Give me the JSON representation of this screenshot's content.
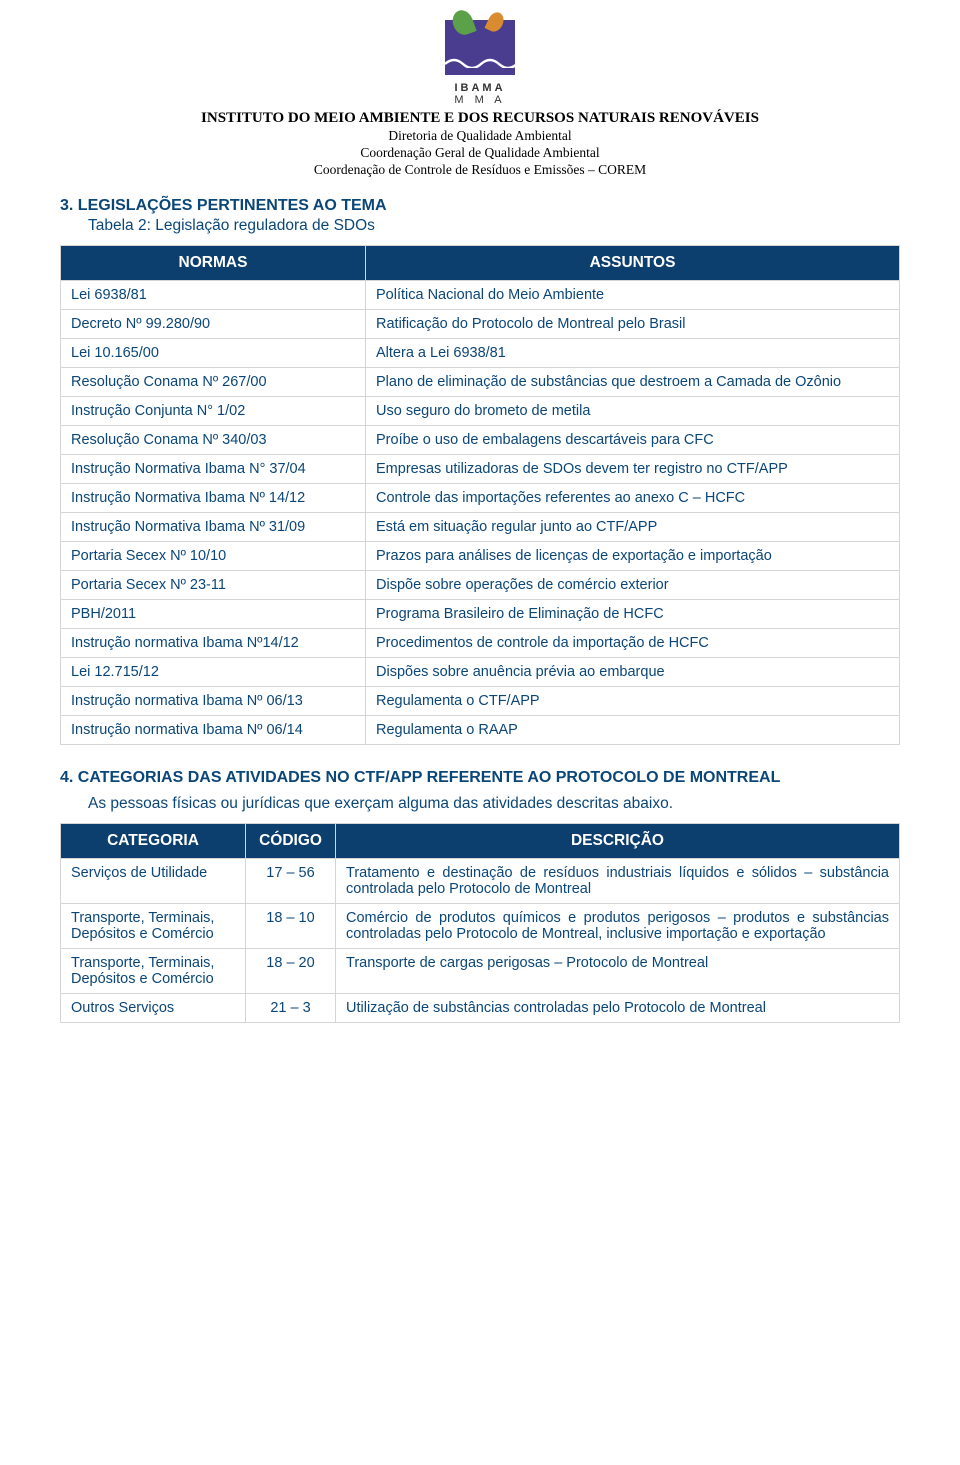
{
  "colors": {
    "accent": "#0b4678",
    "header_bg": "#0c3f6e",
    "header_text": "#ffffff",
    "border": "#d5d5d5",
    "body_text": "#0b4678",
    "page_bg": "#ffffff",
    "logo_bg": "#4a3d8f",
    "logo_leaf": "#5da04a",
    "logo_accent": "#d98b2f"
  },
  "typography": {
    "heading_fontsize": 16,
    "body_fontsize": 15.5,
    "cell_fontsize": 14.5,
    "header_serif_fontsize": 15,
    "header_serif_sub_fontsize": 13.5
  },
  "logo": {
    "name": "IBAMA",
    "sub": "M M A"
  },
  "header": {
    "line1": "INSTITUTO DO MEIO AMBIENTE E DOS RECURSOS NATURAIS RENOVÁVEIS",
    "line2": "Diretoria de Qualidade Ambiental",
    "line3": "Coordenação Geral de Qualidade Ambiental",
    "line4": "Coordenação de Controle de Resíduos e Emissões – COREM"
  },
  "section3": {
    "number": "3.",
    "title": "LEGISLAÇÕES PERTINENTES AO TEMA",
    "subtitle": "Tabela 2: Legislação reguladora de SDOs"
  },
  "table1": {
    "col1": "NORMAS",
    "col2": "ASSUNTOS",
    "rows": [
      {
        "c1": "Lei 6938/81",
        "c2": "Política Nacional do Meio Ambiente"
      },
      {
        "c1": "Decreto Nº 99.280/90",
        "c2": "Ratificação do Protocolo de Montreal pelo Brasil"
      },
      {
        "c1": "Lei 10.165/00",
        "c2": "Altera a Lei 6938/81"
      },
      {
        "c1": "Resolução Conama Nº 267/00",
        "c2": "Plano de eliminação de substâncias que destroem a Camada de Ozônio"
      },
      {
        "c1": "Instrução Conjunta N° 1/02",
        "c2": "Uso seguro do brometo de metila"
      },
      {
        "c1": "Resolução Conama Nº 340/03",
        "c2": "Proíbe o uso de embalagens descartáveis para CFC"
      },
      {
        "c1": "Instrução Normativa Ibama N° 37/04",
        "c2": "Empresas utilizadoras de SDOs devem ter registro no CTF/APP"
      },
      {
        "c1": "Instrução Normativa Ibama Nº 14/12",
        "c2": "Controle das importações referentes ao anexo C – HCFC"
      },
      {
        "c1": "Instrução Normativa Ibama Nº 31/09",
        "c2": "Está em situação regular junto ao CTF/APP"
      },
      {
        "c1": "Portaria Secex Nº 10/10",
        "c2": "Prazos para análises de licenças de exportação e importação"
      },
      {
        "c1": "Portaria Secex Nº 23-11",
        "c2": "Dispõe sobre operações de comércio exterior"
      },
      {
        "c1": "PBH/2011",
        "c2": "Programa Brasileiro de Eliminação de HCFC"
      },
      {
        "c1": "Instrução normativa Ibama Nº14/12",
        "c2": "Procedimentos de controle da importação de HCFC"
      },
      {
        "c1": "Lei 12.715/12",
        "c2": "Dispões sobre anuência prévia ao embarque"
      },
      {
        "c1": "Instrução normativa Ibama Nº 06/13",
        "c2": "Regulamenta o CTF/APP"
      },
      {
        "c1": "Instrução normativa Ibama Nº 06/14",
        "c2": "Regulamenta o RAAP"
      }
    ]
  },
  "section4": {
    "number": "4.",
    "title": "CATEGORIAS DAS ATIVIDADES NO CTF/APP REFERENTE AO PROTOCOLO DE MONTREAL",
    "body": "As pessoas físicas ou jurídicas que exerçam alguma das atividades descritas abaixo."
  },
  "table2": {
    "col1": "CATEGORIA",
    "col2": "CÓDIGO",
    "col3": "DESCRIÇÃO",
    "rows": [
      {
        "c1": "Serviços de Utilidade",
        "c2": "17 – 56",
        "c3": "Tratamento e destinação de resíduos industriais líquidos e sólidos – substância controlada pelo Protocolo de Montreal"
      },
      {
        "c1": "Transporte, Terminais, Depósitos e Comércio",
        "c2": "18 – 10",
        "c3": "Comércio de produtos químicos e produtos perigosos – produtos e substâncias controladas pelo Protocolo de Montreal, inclusive importação e exportação"
      },
      {
        "c1": "Transporte, Terminais, Depósitos e Comércio",
        "c2": "18 – 20",
        "c3": "Transporte de cargas perigosas – Protocolo de Montreal"
      },
      {
        "c1": "Outros Serviços",
        "c2": "21 – 3",
        "c3": "Utilização de substâncias controladas pelo Protocolo de Montreal"
      }
    ]
  }
}
